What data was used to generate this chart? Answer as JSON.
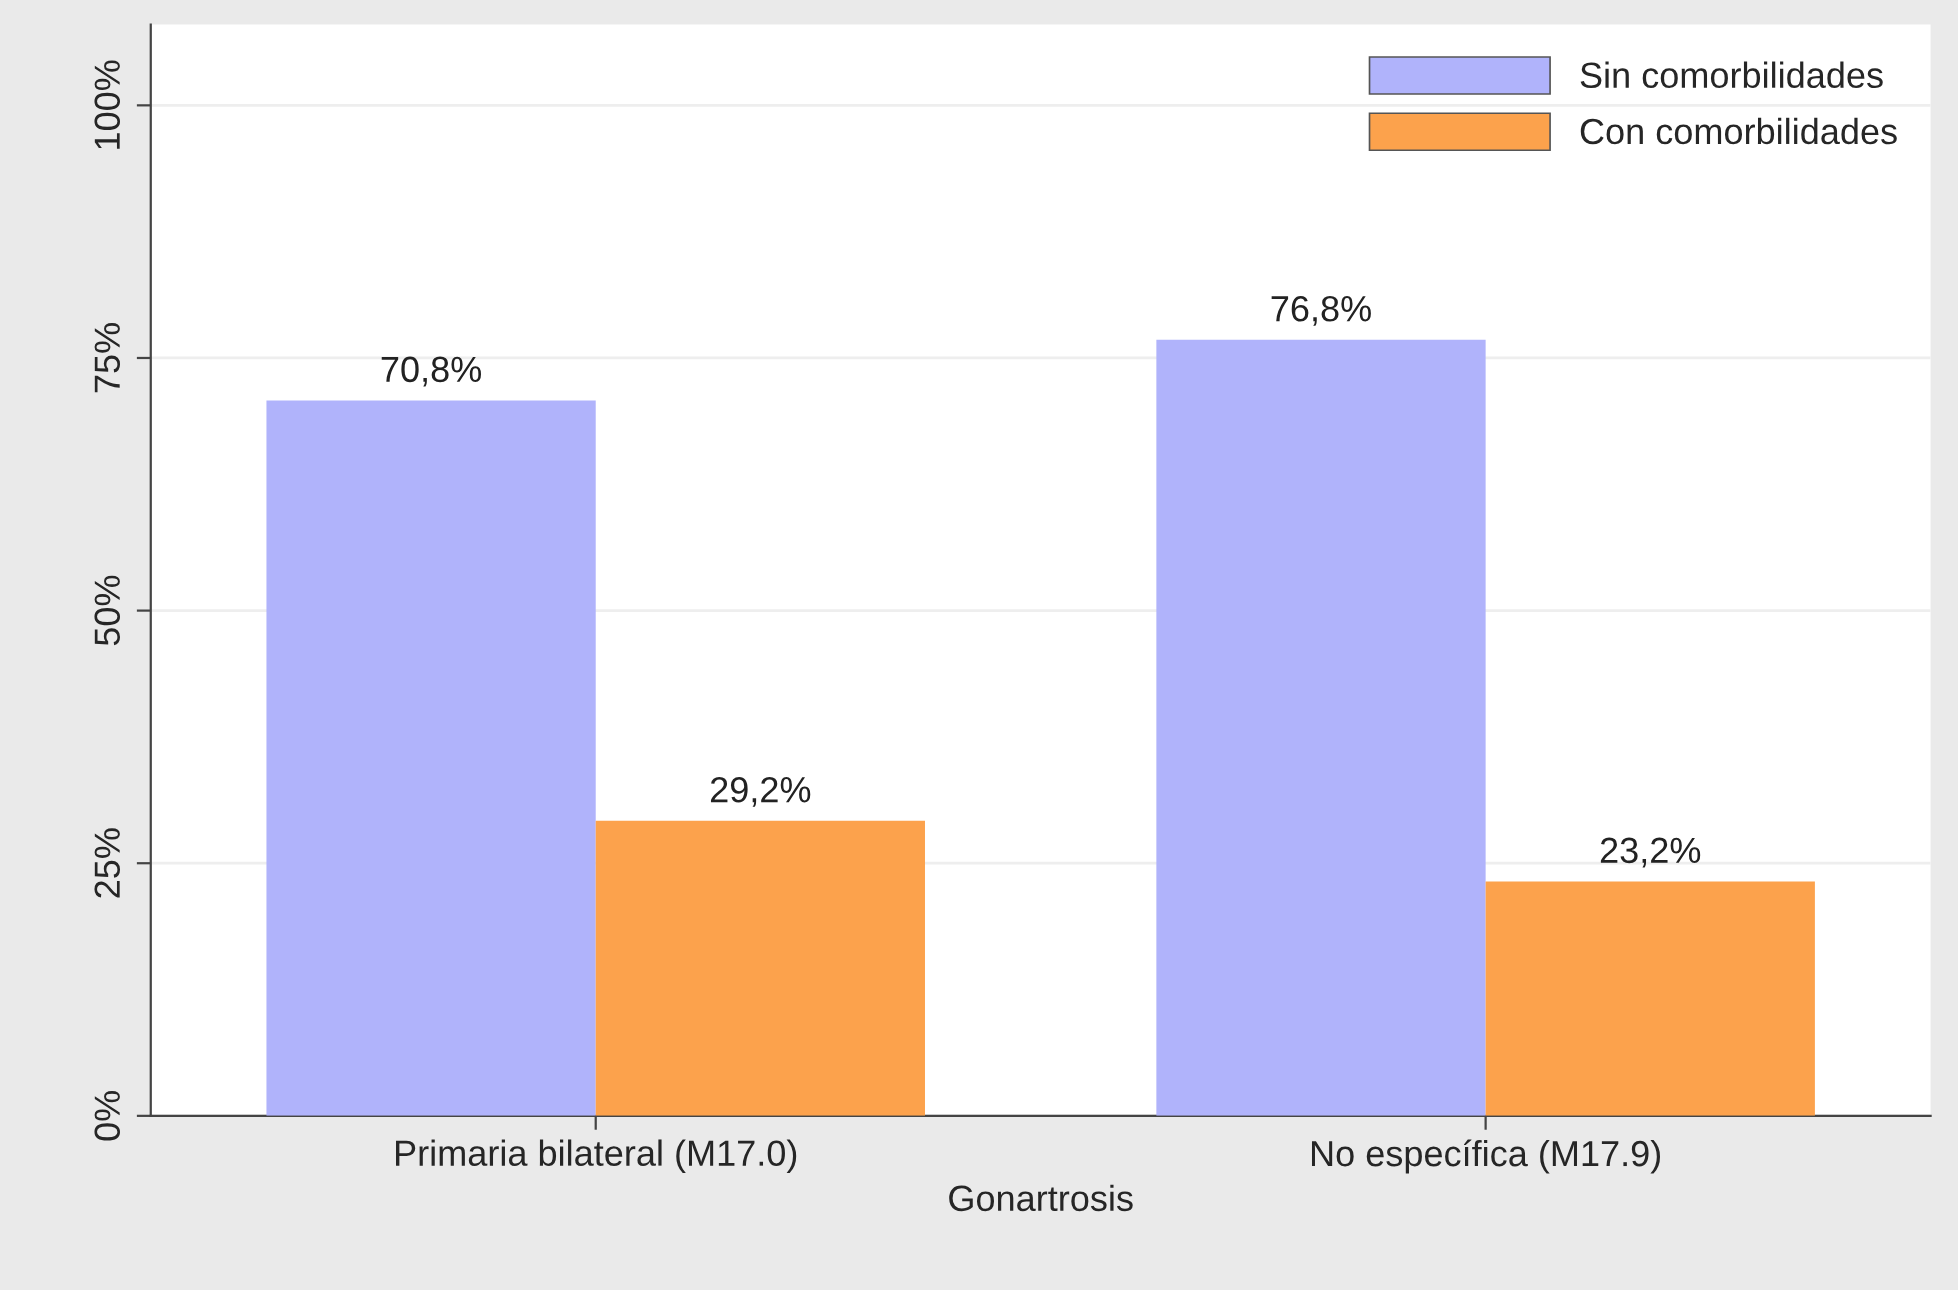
{
  "chart_data": {
    "type": "bar",
    "xlabel": "Gonartrosis",
    "categories": [
      "Primaria bilateral (M17.0)",
      "No específica (M17.9)"
    ],
    "series": [
      {
        "name": "Sin comorbilidades",
        "color": "#b0b3fb",
        "values": [
          70.8,
          76.8
        ],
        "value_labels": [
          "70,8%",
          "76,8%"
        ]
      },
      {
        "name": "Con comorbilidades",
        "color": "#fca24c",
        "values": [
          29.2,
          23.2
        ],
        "value_labels": [
          "29,2%",
          "23,2%"
        ]
      }
    ],
    "ylim": [
      0,
      108
    ],
    "yticks": [
      {
        "value": 0,
        "label": "0%"
      },
      {
        "value": 25,
        "label": "25%"
      },
      {
        "value": 50,
        "label": "50%"
      },
      {
        "value": 75,
        "label": "75%"
      },
      {
        "value": 100,
        "label": "100%"
      }
    ],
    "grid": "y",
    "legend": "top right"
  }
}
